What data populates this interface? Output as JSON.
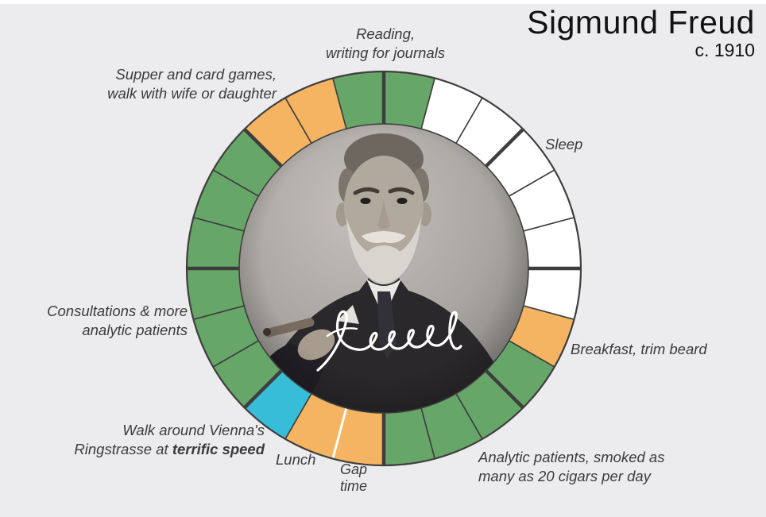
{
  "title": "Sigmund Freud",
  "subtitle": "c. 1910",
  "signature": "freud",
  "labels": {
    "reading": {
      "line1": "Reading,",
      "line2": "writing for journals"
    },
    "supper": {
      "line1": "Supper and card games,",
      "line2": "walk with wife or daughter"
    },
    "sleep": "Sleep",
    "breakfast": "Breakfast, trim beard",
    "analytic": {
      "line1": "Analytic patients, smoked as",
      "line2": "many as 20 cigars per day"
    },
    "gap": {
      "line1": "Gap",
      "line2": "time"
    },
    "lunch": "Lunch",
    "walk": {
      "line1": "Walk around Vienna's",
      "line2_prefix": "Ringstrasse at ",
      "line2_bold": "terrific speed"
    },
    "consultations": {
      "line1": "Consultations & more",
      "line2": "analytic patients"
    }
  },
  "colors": {
    "green": "#67a669",
    "orange": "#f4b461",
    "blue": "#38bdd9",
    "sleep_white": "#ffffff",
    "outline": "#3e3e3e",
    "background": "#ececee",
    "label_text": "#3b3b3b",
    "title_text": "#121212"
  },
  "chart_data": {
    "type": "pie",
    "subtype": "24-hour-donut-clock",
    "title": "Sigmund Freud daily routine, c. 1910",
    "units": "hours",
    "total_hours": 24,
    "midnight_at_top": true,
    "clockwise": true,
    "center_portrait": "Black-and-white photograph of Sigmund Freud holding a cigar, overlaid with white handwritten signature 'freud'",
    "ticks": {
      "every_hour": true,
      "bold_every": 3,
      "white_dividers_at": [
        13
      ]
    },
    "segments": [
      {
        "id": "sleep",
        "label": "Sleep",
        "start": 1,
        "end": 7,
        "duration_h": 6,
        "color": "#ffffff"
      },
      {
        "id": "breakfast",
        "label": "Breakfast, trim beard",
        "start": 7,
        "end": 8,
        "duration_h": 1,
        "color": "#f4b461"
      },
      {
        "id": "analytic",
        "label": "Analytic patients, smoked as many as 20 cigars per day",
        "start": 8,
        "end": 12,
        "duration_h": 4,
        "color": "#67a669"
      },
      {
        "id": "gap-time",
        "label": "Gap time",
        "start": 12,
        "end": 13,
        "duration_h": 1,
        "color": "#f4b461"
      },
      {
        "id": "lunch",
        "label": "Lunch",
        "start": 13,
        "end": 14,
        "duration_h": 1,
        "color": "#f4b461"
      },
      {
        "id": "walk",
        "label": "Walk around Vienna's Ringstrasse at terrific speed",
        "start": 14,
        "end": 15,
        "duration_h": 1,
        "color": "#38bdd9"
      },
      {
        "id": "consultations",
        "label": "Consultations & more analytic patients",
        "start": 15,
        "end": 21,
        "duration_h": 6,
        "color": "#67a669"
      },
      {
        "id": "supper",
        "label": "Supper and card games, walk with wife or daughter",
        "start": 21,
        "end": 23,
        "duration_h": 2,
        "color": "#f4b461"
      },
      {
        "id": "reading",
        "label": "Reading, writing for journals",
        "start": 23,
        "end": 25,
        "duration_h": 2,
        "color": "#67a669"
      }
    ]
  }
}
